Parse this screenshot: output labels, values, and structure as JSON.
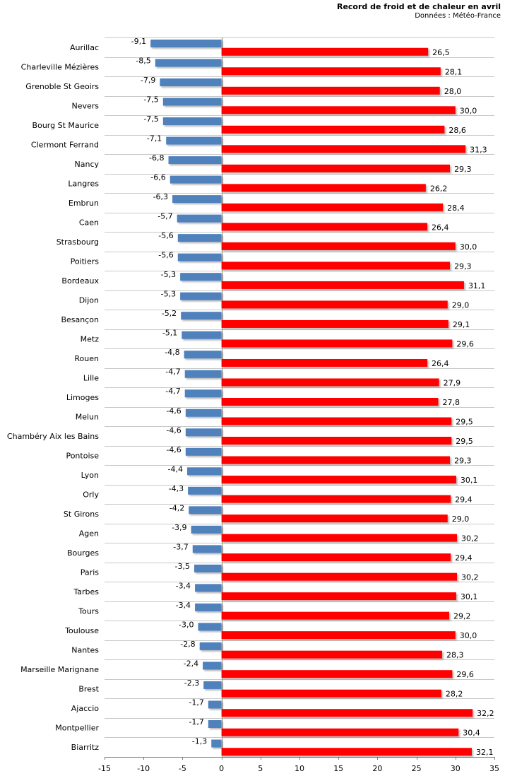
{
  "chart_data": {
    "type": "bar",
    "orientation": "horizontal",
    "title": "Record de froid et de chaleur en avril",
    "subtitle": "Données : Météo-France",
    "xlim": [
      -15,
      35
    ],
    "xticks": [
      "-15",
      "-10",
      "-5",
      "0",
      "5",
      "10",
      "15",
      "20",
      "25",
      "30",
      "35"
    ],
    "grid": "horizontal lines between categories",
    "categories": [
      "Aurillac",
      "Charleville Mézières",
      "Grenoble St Geoirs",
      "Nevers",
      "Bourg St Maurice",
      "Clermont Ferrand",
      "Nancy",
      "Langres",
      "Embrun",
      "Caen",
      "Strasbourg",
      "Poitiers",
      "Bordeaux",
      "Dijon",
      "Besançon",
      "Metz",
      "Rouen",
      "Lille",
      "Limoges",
      "Melun",
      "Chambéry Aix les Bains",
      "Pontoise",
      "Lyon",
      "Orly",
      "St Girons",
      "Agen",
      "Bourges",
      "Paris",
      "Tarbes",
      "Tours",
      "Toulouse",
      "Nantes",
      "Marseille Marignane",
      "Brest",
      "Ajaccio",
      "Montpellier",
      "Biarritz"
    ],
    "series": [
      {
        "color": "#4f81bd",
        "values": [
          -9.1,
          -8.5,
          -7.9,
          -7.5,
          -7.5,
          -7.1,
          -6.8,
          -6.6,
          -6.3,
          -5.7,
          -5.6,
          -5.6,
          -5.3,
          -5.3,
          -5.2,
          -5.1,
          -4.8,
          -4.7,
          -4.7,
          -4.6,
          -4.6,
          -4.6,
          -4.4,
          -4.3,
          -4.2,
          -3.9,
          -3.7,
          -3.5,
          -3.4,
          -3.4,
          -3.0,
          -2.8,
          -2.4,
          -2.3,
          -1.7,
          -1.7,
          -1.3
        ],
        "labels": [
          "-9,1",
          "-8,5",
          "-7,9",
          "-7,5",
          "-7,5",
          "-7,1",
          "-6,8",
          "-6,6",
          "-6,3",
          "-5,7",
          "-5,6",
          "-5,6",
          "-5,3",
          "-5,3",
          "-5,2",
          "-5,1",
          "-4,8",
          "-4,7",
          "-4,7",
          "-4,6",
          "-4,6",
          "-4,6",
          "-4,4",
          "-4,3",
          "-4,2",
          "-3,9",
          "-3,7",
          "-3,5",
          "-3,4",
          "-3,4",
          "-3,0",
          "-2,8",
          "-2,4",
          "-2,3",
          "-1,7",
          "-1,7",
          "-1,3"
        ]
      },
      {
        "color": "#ff0000",
        "values": [
          26.5,
          28.1,
          28.0,
          30.0,
          28.6,
          31.3,
          29.3,
          26.2,
          28.4,
          26.4,
          30.0,
          29.3,
          31.1,
          29.0,
          29.1,
          29.6,
          26.4,
          27.9,
          27.8,
          29.5,
          29.5,
          29.3,
          30.1,
          29.4,
          29.0,
          30.2,
          29.4,
          30.2,
          30.1,
          29.2,
          30.0,
          28.3,
          29.6,
          28.2,
          32.2,
          30.4,
          32.1
        ],
        "labels": [
          "26,5",
          "28,1",
          "28,0",
          "30,0",
          "28,6",
          "31,3",
          "29,3",
          "26,2",
          "28,4",
          "26,4",
          "30,0",
          "29,3",
          "31,1",
          "29,0",
          "29,1",
          "29,6",
          "26,4",
          "27,9",
          "27,8",
          "29,5",
          "29,5",
          "29,3",
          "30,1",
          "29,4",
          "29,0",
          "30,2",
          "29,4",
          "30,2",
          "30,1",
          "29,2",
          "30,0",
          "28,3",
          "29,6",
          "28,2",
          "32,2",
          "30,4",
          "32,1"
        ]
      }
    ]
  }
}
